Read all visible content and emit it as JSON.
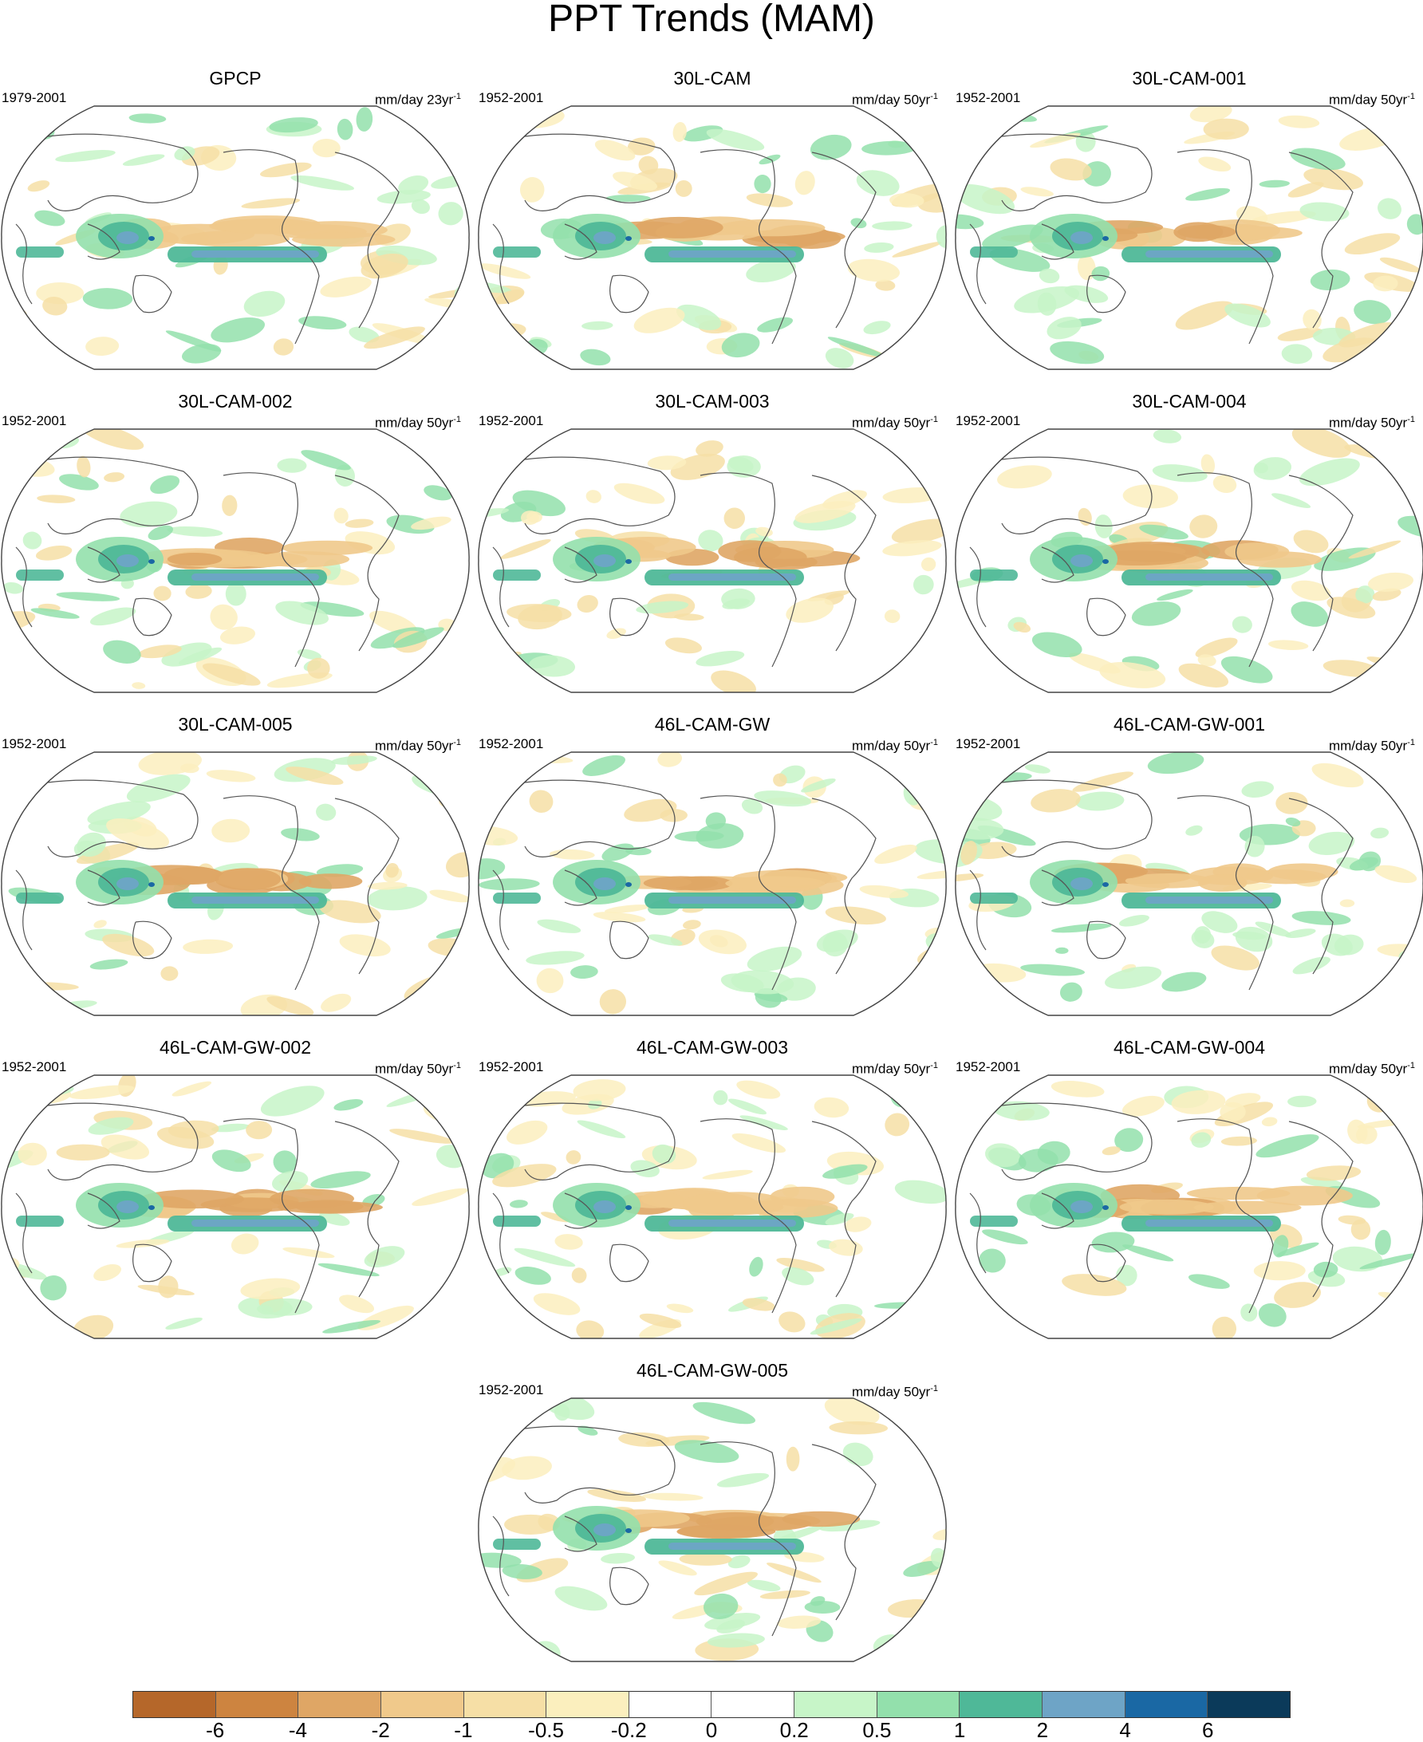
{
  "title": "PPT Trends (MAM)",
  "panels": [
    {
      "name": "GPCP",
      "period": "1979-2001",
      "units": "mm/day 23yr",
      "units_exp": "-1"
    },
    {
      "name": "30L-CAM",
      "period": "1952-2001",
      "units": "mm/day 50yr",
      "units_exp": "-1"
    },
    {
      "name": "30L-CAM-001",
      "period": "1952-2001",
      "units": "mm/day 50yr",
      "units_exp": "-1"
    },
    {
      "name": "30L-CAM-002",
      "period": "1952-2001",
      "units": "mm/day 50yr",
      "units_exp": "-1"
    },
    {
      "name": "30L-CAM-003",
      "period": "1952-2001",
      "units": "mm/day 50yr",
      "units_exp": "-1"
    },
    {
      "name": "30L-CAM-004",
      "period": "1952-2001",
      "units": "mm/day 50yr",
      "units_exp": "-1"
    },
    {
      "name": "30L-CAM-005",
      "period": "1952-2001",
      "units": "mm/day 50yr",
      "units_exp": "-1"
    },
    {
      "name": "46L-CAM-GW",
      "period": "1952-2001",
      "units": "mm/day 50yr",
      "units_exp": "-1"
    },
    {
      "name": "46L-CAM-GW-001",
      "period": "1952-2001",
      "units": "mm/day 50yr",
      "units_exp": "-1"
    },
    {
      "name": "46L-CAM-GW-002",
      "period": "1952-2001",
      "units": "mm/day 50yr",
      "units_exp": "-1"
    },
    {
      "name": "46L-CAM-GW-003",
      "period": "1952-2001",
      "units": "mm/day 50yr",
      "units_exp": "-1"
    },
    {
      "name": "46L-CAM-GW-004",
      "period": "1952-2001",
      "units": "mm/day 50yr",
      "units_exp": "-1"
    },
    {
      "name": "46L-CAM-GW-005",
      "period": "1952-2001",
      "units": "mm/day 50yr",
      "units_exp": "-1"
    }
  ],
  "colorbar": {
    "colors": [
      "#b5672a",
      "#cd8440",
      "#dfa665",
      "#f0c98b",
      "#f6dfa6",
      "#fbefbe",
      "#ffffff",
      "#ffffff",
      "#c7f5c8",
      "#93e0ac",
      "#4fb898",
      "#6ea4c6",
      "#1a68a4",
      "#0b3a5a"
    ],
    "labels": [
      "-6",
      "-4",
      "-2",
      "-1",
      "-0.5",
      "-0.2",
      "0",
      "0.2",
      "0.5",
      "1",
      "2",
      "4",
      "6"
    ]
  }
}
